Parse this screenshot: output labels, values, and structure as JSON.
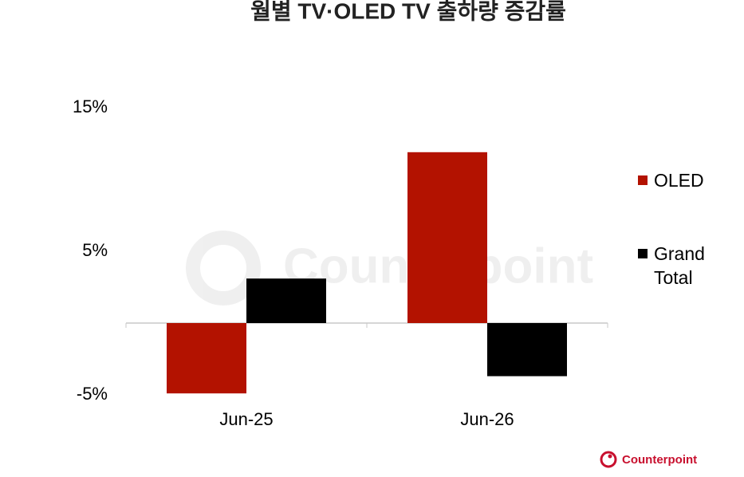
{
  "chart_data": {
    "type": "bar",
    "title": "월별 TV·OLED TV 출하량 증감률",
    "categories": [
      "Jun-25",
      "Jun-26"
    ],
    "series": [
      {
        "name": "OLED",
        "color": "#b31200",
        "values": [
          -4.9,
          11.9
        ]
      },
      {
        "name": "Grand Total",
        "color": "#000000",
        "values": [
          3.1,
          -3.7
        ]
      }
    ],
    "ylim": [
      -5,
      15
    ],
    "yticks": [
      {
        "value": -5,
        "label": "-5%"
      },
      {
        "value": 5,
        "label": "5%"
      },
      {
        "value": 15,
        "label": "15%"
      }
    ],
    "grid": false,
    "legend": "right",
    "watermark": "Counterpoint",
    "logo": "Counterpoint"
  }
}
